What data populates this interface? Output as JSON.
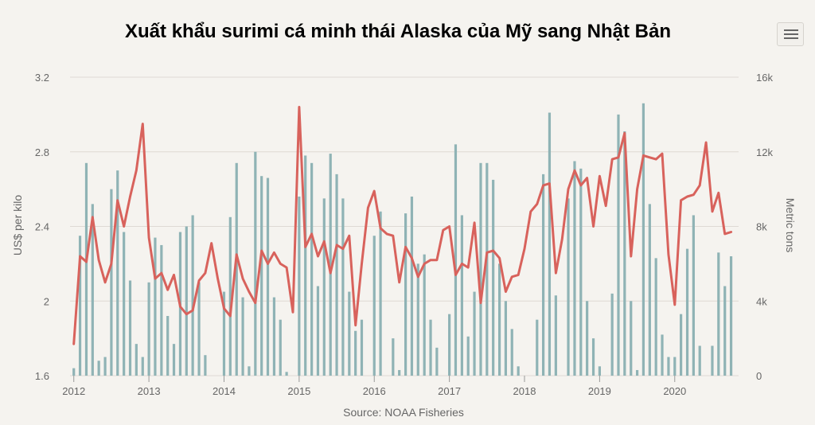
{
  "title": "Xuất khẩu surimi cá minh thái Alaska của Mỹ sang Nhật Bản",
  "source": "Source: NOAA Fisheries",
  "menu_icon": "hamburger-menu-icon",
  "colors": {
    "bars": "#8fb3b5",
    "line": "#d8625c",
    "grid": "#dedad4",
    "text": "#666666",
    "background": "#f5f3ef"
  },
  "chart_data": {
    "type": "bar+line",
    "x_axis": {
      "min": 2011.95,
      "max": 2020.85,
      "tick_labels": [
        "2012",
        "2013",
        "2014",
        "2015",
        "2016",
        "2017",
        "2018",
        "2019",
        "2020"
      ]
    },
    "left_axis": {
      "label": "US$ per kilo",
      "min": 1.6,
      "max": 3.2,
      "tick_labels": [
        "1.6",
        "2",
        "2.4",
        "2.8",
        "3.2"
      ]
    },
    "right_axis": {
      "label": "Metric tons",
      "min": 0,
      "max": 16000,
      "tick_labels": [
        "0",
        "4k",
        "8k",
        "12k",
        "16k"
      ]
    },
    "grid": true,
    "series": [
      {
        "name": "Metric tons",
        "type": "bar",
        "axis": "right",
        "x": [
          2012.0,
          2012.083,
          2012.167,
          2012.25,
          2012.333,
          2012.417,
          2012.5,
          2012.583,
          2012.667,
          2012.75,
          2012.833,
          2012.917,
          2013.0,
          2013.083,
          2013.167,
          2013.25,
          2013.333,
          2013.417,
          2013.5,
          2013.583,
          2013.667,
          2013.75,
          2013.833,
          2013.917,
          2014.0,
          2014.083,
          2014.167,
          2014.25,
          2014.333,
          2014.417,
          2014.5,
          2014.583,
          2014.667,
          2014.75,
          2014.833,
          2014.917,
          2015.0,
          2015.083,
          2015.167,
          2015.25,
          2015.333,
          2015.417,
          2015.5,
          2015.583,
          2015.667,
          2015.75,
          2015.833,
          2015.917,
          2016.0,
          2016.083,
          2016.167,
          2016.25,
          2016.333,
          2016.417,
          2016.5,
          2016.583,
          2016.667,
          2016.75,
          2016.833,
          2016.917,
          2017.0,
          2017.083,
          2017.167,
          2017.25,
          2017.333,
          2017.417,
          2017.5,
          2017.583,
          2017.667,
          2017.75,
          2017.833,
          2017.917,
          2018.0,
          2018.083,
          2018.167,
          2018.25,
          2018.333,
          2018.417,
          2018.5,
          2018.583,
          2018.667,
          2018.75,
          2018.833,
          2018.917,
          2019.0,
          2019.083,
          2019.167,
          2019.25,
          2019.333,
          2019.417,
          2019.5,
          2019.583,
          2019.667,
          2019.75,
          2019.833,
          2019.917,
          2020.0,
          2020.083,
          2020.167,
          2020.25,
          2020.333,
          2020.417,
          2020.5,
          2020.583,
          2020.667,
          2020.75
        ],
        "values": [
          400,
          7500,
          11400,
          9200,
          800,
          1000,
          10000,
          11000,
          7700,
          5100,
          1700,
          1000,
          5000,
          7400,
          7000,
          3200,
          1700,
          7700,
          8000,
          8600,
          5000,
          1100,
          0,
          0,
          4500,
          8500,
          11400,
          4200,
          500,
          12000,
          10700,
          10600,
          4200,
          3000,
          200,
          0,
          9600,
          11800,
          11400,
          4800,
          9500,
          11900,
          10800,
          9500,
          4500,
          2400,
          3000,
          0,
          7500,
          8800,
          0,
          2000,
          300,
          8700,
          9600,
          6000,
          6500,
          3000,
          1500,
          0,
          3300,
          12400,
          8600,
          2100,
          4500,
          11400,
          11400,
          10500,
          6000,
          4000,
          2500,
          500,
          0,
          0,
          3000,
          10800,
          14100,
          4300,
          0,
          9500,
          11500,
          11100,
          4000,
          2000,
          500,
          0,
          4400,
          14000,
          13100,
          4000,
          300,
          14600,
          9200,
          6300,
          2200,
          1000,
          1000,
          3300,
          6800,
          8600,
          1600,
          0,
          1600,
          6600,
          4800,
          6400
        ]
      },
      {
        "name": "US$ per kilo",
        "type": "line",
        "axis": "left",
        "x": [
          2012.0,
          2012.083,
          2012.167,
          2012.25,
          2012.333,
          2012.417,
          2012.5,
          2012.583,
          2012.667,
          2012.75,
          2012.833,
          2012.917,
          2013.0,
          2013.083,
          2013.167,
          2013.25,
          2013.333,
          2013.417,
          2013.5,
          2013.583,
          2013.667,
          2013.75,
          2013.833,
          2013.917,
          2014.0,
          2014.083,
          2014.167,
          2014.25,
          2014.333,
          2014.417,
          2014.5,
          2014.583,
          2014.667,
          2014.75,
          2014.833,
          2014.917,
          2015.0,
          2015.083,
          2015.167,
          2015.25,
          2015.333,
          2015.417,
          2015.5,
          2015.583,
          2015.667,
          2015.75,
          2015.833,
          2015.917,
          2016.0,
          2016.083,
          2016.167,
          2016.25,
          2016.333,
          2016.417,
          2016.5,
          2016.583,
          2016.667,
          2016.75,
          2016.833,
          2016.917,
          2017.0,
          2017.083,
          2017.167,
          2017.25,
          2017.333,
          2017.417,
          2017.5,
          2017.583,
          2017.667,
          2017.75,
          2017.833,
          2017.917,
          2018.0,
          2018.083,
          2018.167,
          2018.25,
          2018.333,
          2018.417,
          2018.5,
          2018.583,
          2018.667,
          2018.75,
          2018.833,
          2018.917,
          2019.0,
          2019.083,
          2019.167,
          2019.25,
          2019.333,
          2019.417,
          2019.5,
          2019.583,
          2019.667,
          2019.75,
          2019.833,
          2019.917,
          2020.0,
          2020.083,
          2020.167,
          2020.25,
          2020.333,
          2020.417,
          2020.5,
          2020.583,
          2020.667,
          2020.75
        ],
        "values": [
          1.77,
          2.24,
          2.21,
          2.45,
          2.22,
          2.1,
          2.2,
          2.54,
          2.4,
          2.56,
          2.7,
          2.95,
          2.34,
          2.12,
          2.15,
          2.06,
          2.14,
          1.97,
          1.93,
          1.95,
          2.11,
          2.15,
          2.31,
          2.12,
          1.96,
          1.92,
          2.25,
          2.12,
          2.05,
          1.99,
          2.27,
          2.2,
          2.26,
          2.2,
          2.18,
          1.94,
          3.04,
          2.29,
          2.36,
          2.24,
          2.32,
          2.15,
          2.3,
          2.28,
          2.35,
          1.87,
          2.2,
          2.5,
          2.59,
          2.39,
          2.36,
          2.35,
          2.1,
          2.29,
          2.23,
          2.13,
          2.2,
          2.22,
          2.22,
          2.38,
          2.4,
          2.14,
          2.2,
          2.18,
          2.42,
          1.99,
          2.26,
          2.27,
          2.23,
          2.05,
          2.13,
          2.14,
          2.28,
          2.48,
          2.52,
          2.62,
          2.63,
          2.15,
          2.33,
          2.6,
          2.7,
          2.62,
          2.66,
          2.4,
          2.67,
          2.51,
          2.76,
          2.77,
          2.9,
          2.24,
          2.6,
          2.78,
          2.77,
          2.76,
          2.79,
          2.25,
          1.98,
          2.54,
          2.56,
          2.57,
          2.62,
          2.85,
          2.48,
          2.58,
          2.36,
          2.37
        ]
      }
    ]
  }
}
